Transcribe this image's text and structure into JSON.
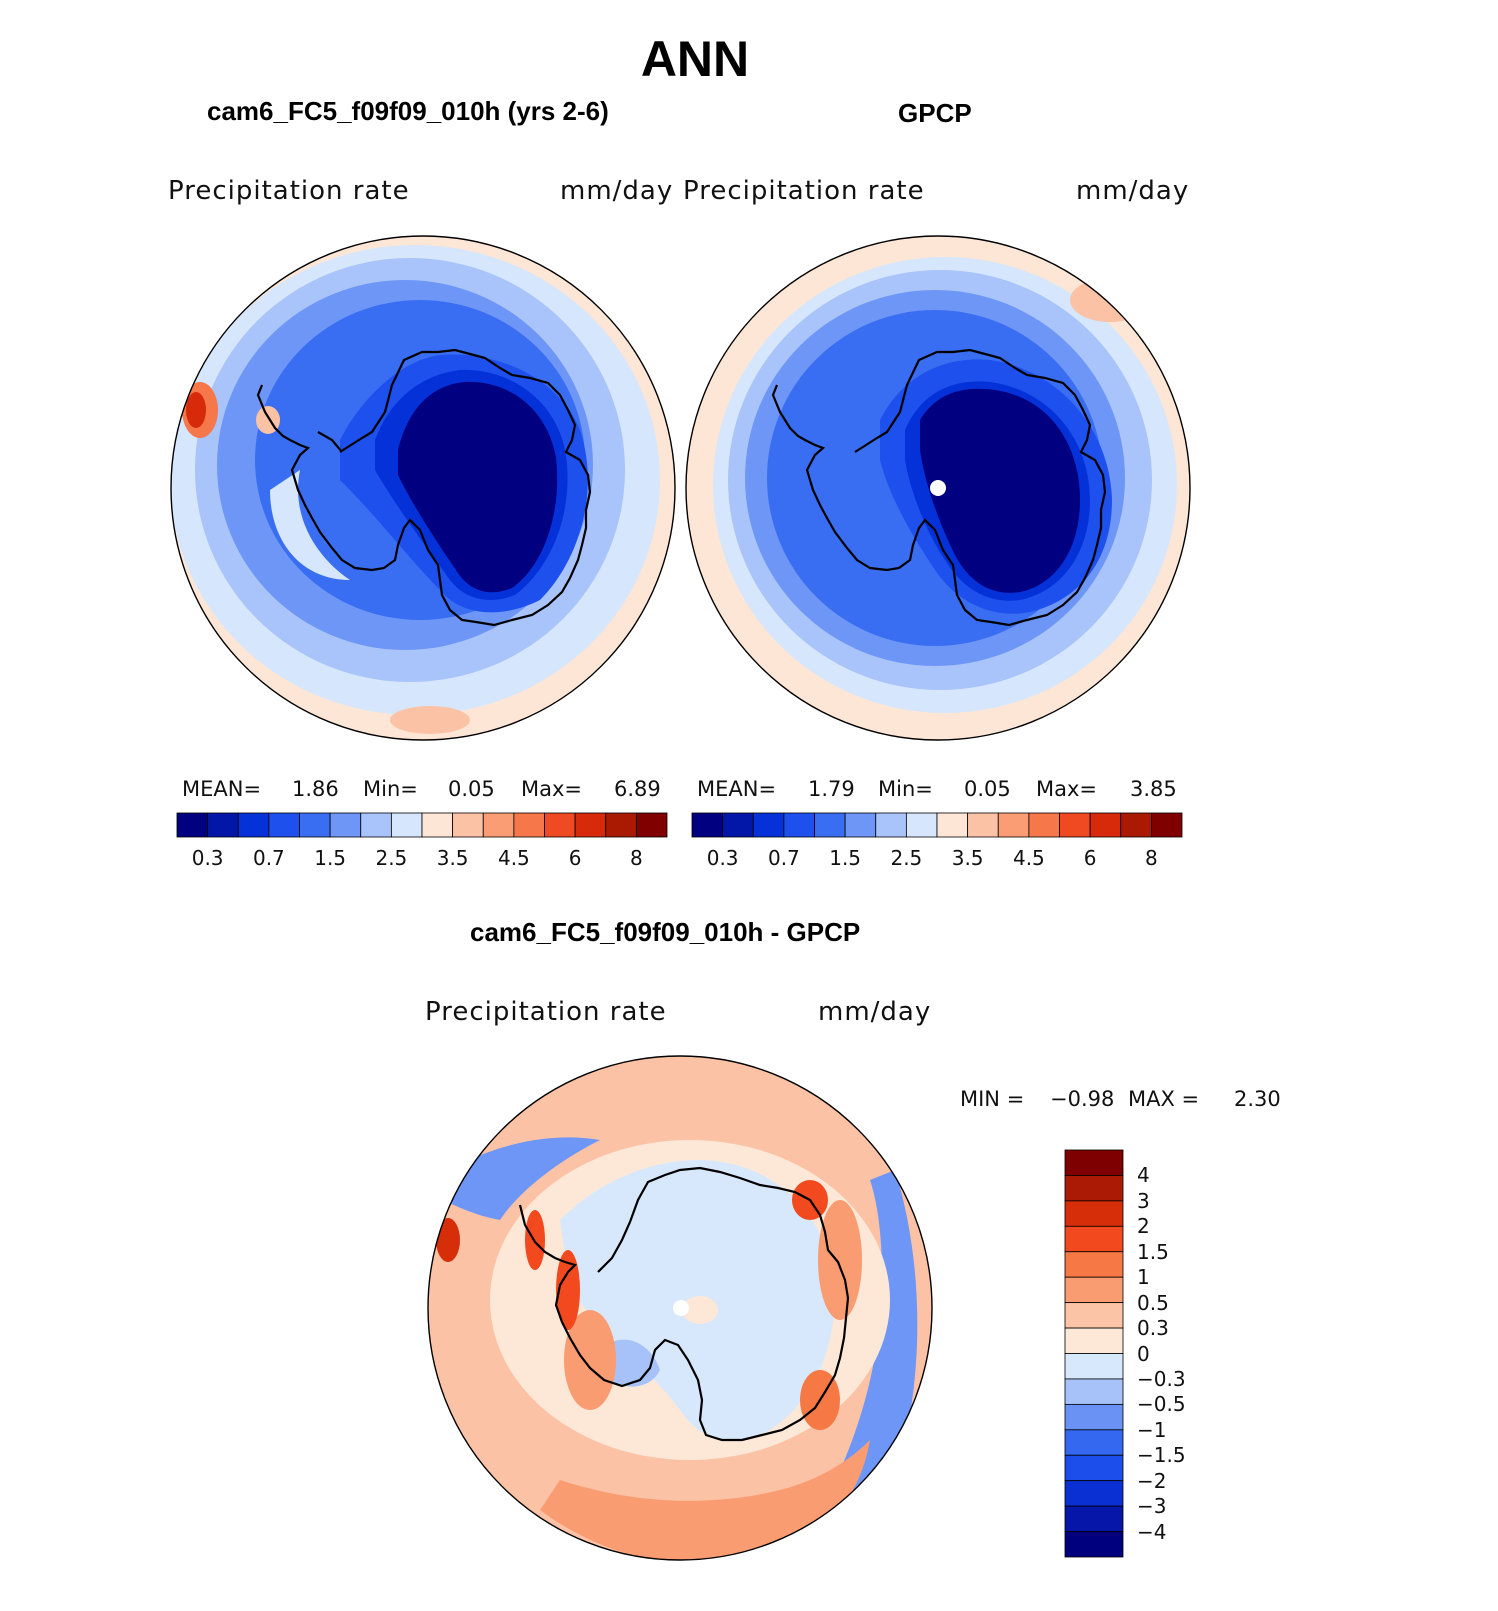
{
  "page_title": "ANN",
  "panels": [
    {
      "title": "cam6_FC5_f09f09_010h (yrs 2-6)",
      "variable": "Precipitation rate",
      "units": "mm/day",
      "stats": {
        "mean_label": "MEAN=",
        "mean": "1.86",
        "min_label": "Min=",
        "min": "0.05",
        "max_label": "Max=",
        "max": "6.89"
      }
    },
    {
      "title": "GPCP",
      "variable": "Precipitation rate",
      "units": "mm/day",
      "stats": {
        "mean_label": "MEAN=",
        "mean": "1.79",
        "min_label": "Min=",
        "min": "0.05",
        "max_label": "Max=",
        "max": "3.85"
      }
    },
    {
      "title": "cam6_FC5_f09f09_010h - GPCP",
      "variable": "Precipitation rate",
      "units": "mm/day",
      "stats": {
        "min_label": "MIN =",
        "min": "−0.98",
        "max_label": "MAX =",
        "max": "2.30"
      }
    }
  ],
  "colorbars": {
    "absolute": {
      "colors": [
        "#000080",
        "#0216a8",
        "#0432d8",
        "#1e50ee",
        "#3a6ef2",
        "#6e96f6",
        "#a8c4fa",
        "#d6e6fc",
        "#fde6d6",
        "#fcc2a6",
        "#fa9c74",
        "#f6784a",
        "#f04a22",
        "#d62a0a",
        "#aa1a02",
        "#800000"
      ],
      "tick_labels": [
        "0.3",
        "0.7",
        "1.5",
        "2.5",
        "3.5",
        "4.5",
        "6",
        "8"
      ]
    },
    "difference": {
      "colors": [
        "#00007e",
        "#0616a8",
        "#0a30d4",
        "#1c4eec",
        "#3468f0",
        "#6a92f4",
        "#a6c2f8",
        "#d8e8fc",
        "#fde8d8",
        "#fcc4a6",
        "#fa9c72",
        "#f67844",
        "#f24a1e",
        "#d62e08",
        "#aa1a04",
        "#7e0000"
      ],
      "tick_labels": [
        "−4",
        "−3",
        "−2",
        "−1.5",
        "−1",
        "−0.5",
        "−0.3",
        "0",
        "0.3",
        "0.5",
        "1",
        "1.5",
        "2",
        "3",
        "4"
      ]
    }
  },
  "map_colors": {
    "ocean_far_model": "#fde6d6",
    "ocean_far_gpcp": "#fde6d6",
    "diff_ocean": "#fcc2a6",
    "coastline": "#000000",
    "pole_marker": "#ffffff"
  }
}
